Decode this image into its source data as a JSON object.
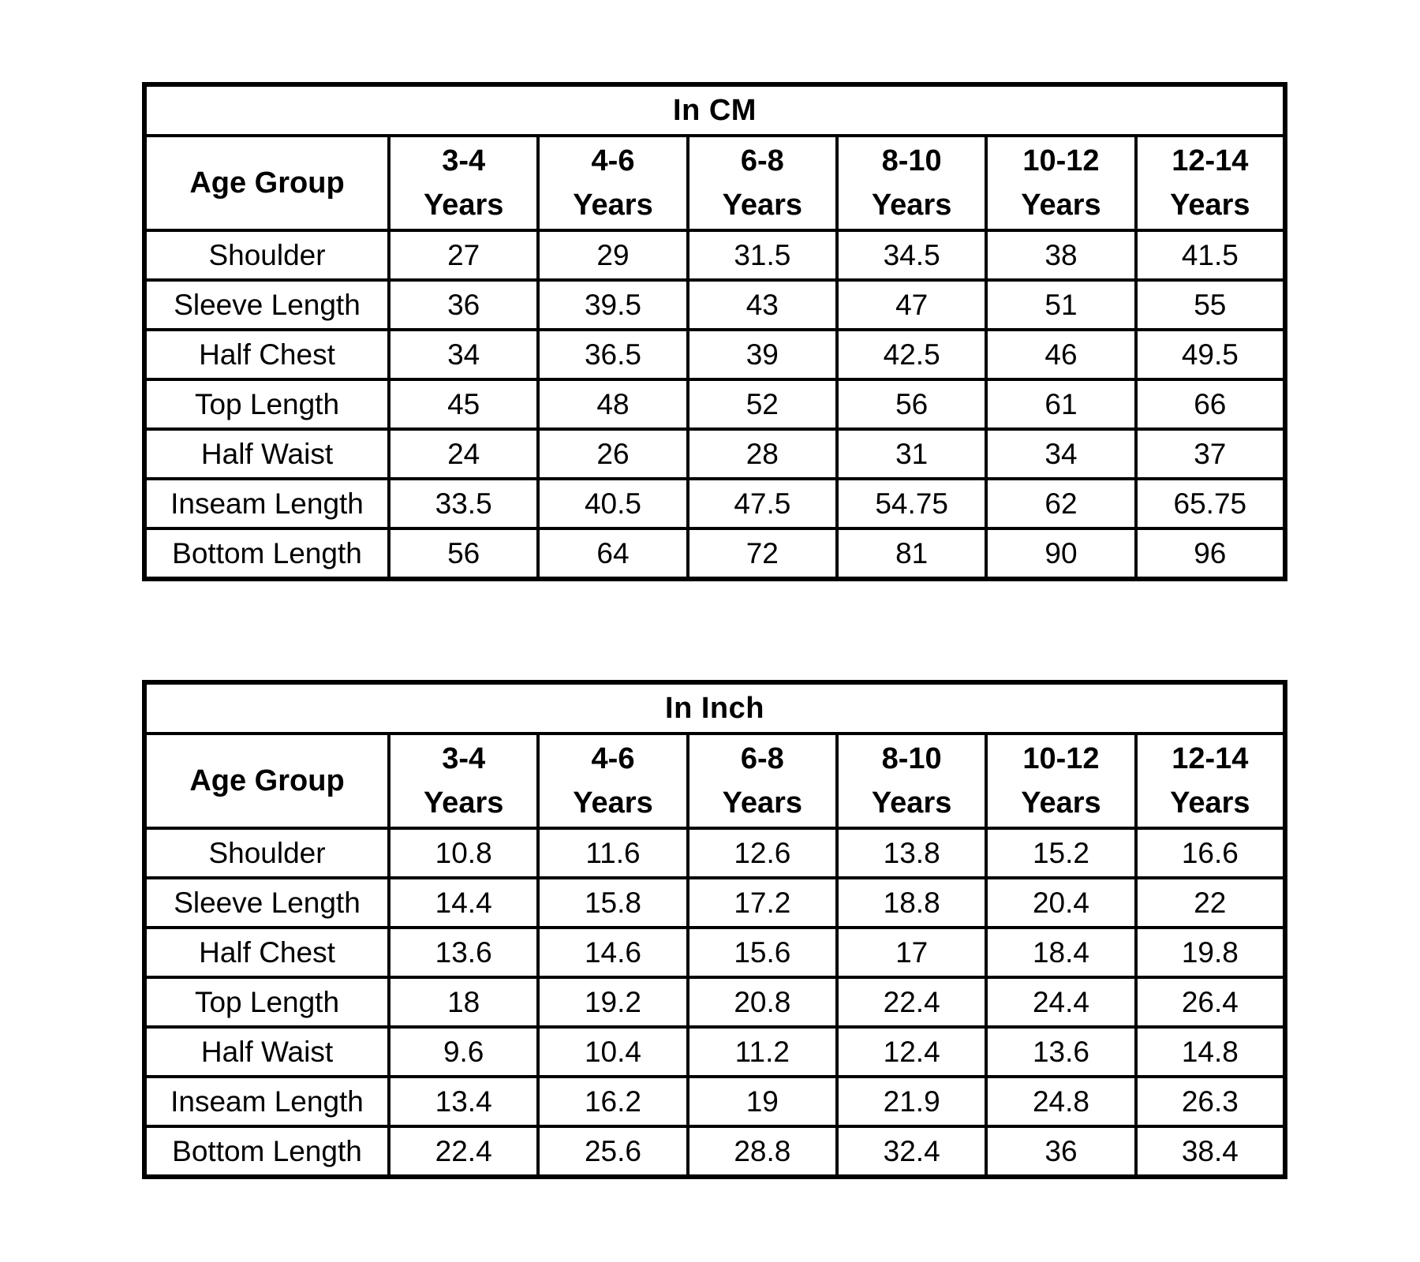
{
  "colors": {
    "background": "#ffffff",
    "text": "#000000",
    "border": "#000000"
  },
  "tables": [
    {
      "title": "In CM",
      "corner_label": "Age Group",
      "age_columns": [
        {
          "range": "3-4",
          "unit": "Years"
        },
        {
          "range": "4-6",
          "unit": "Years"
        },
        {
          "range": "6-8",
          "unit": "Years"
        },
        {
          "range": "8-10",
          "unit": "Years"
        },
        {
          "range": "10-12",
          "unit": "Years"
        },
        {
          "range": "12-14",
          "unit": "Years"
        }
      ],
      "rows": [
        {
          "label": "Shoulder",
          "values": [
            "27",
            "29",
            "31.5",
            "34.5",
            "38",
            "41.5"
          ]
        },
        {
          "label": "Sleeve Length",
          "values": [
            "36",
            "39.5",
            "43",
            "47",
            "51",
            "55"
          ]
        },
        {
          "label": "Half Chest",
          "values": [
            "34",
            "36.5",
            "39",
            "42.5",
            "46",
            "49.5"
          ]
        },
        {
          "label": "Top Length",
          "values": [
            "45",
            "48",
            "52",
            "56",
            "61",
            "66"
          ]
        },
        {
          "label": "Half Waist",
          "values": [
            "24",
            "26",
            "28",
            "31",
            "34",
            "37"
          ]
        },
        {
          "label": "Inseam Length",
          "values": [
            "33.5",
            "40.5",
            "47.5",
            "54.75",
            "62",
            "65.75"
          ]
        },
        {
          "label": "Bottom Length",
          "values": [
            "56",
            "64",
            "72",
            "81",
            "90",
            "96"
          ]
        }
      ]
    },
    {
      "title": "In Inch",
      "corner_label": "Age Group",
      "age_columns": [
        {
          "range": "3-4",
          "unit": "Years"
        },
        {
          "range": "4-6",
          "unit": "Years"
        },
        {
          "range": "6-8",
          "unit": "Years"
        },
        {
          "range": "8-10",
          "unit": "Years"
        },
        {
          "range": "10-12",
          "unit": "Years"
        },
        {
          "range": "12-14",
          "unit": "Years"
        }
      ],
      "rows": [
        {
          "label": "Shoulder",
          "values": [
            "10.8",
            "11.6",
            "12.6",
            "13.8",
            "15.2",
            "16.6"
          ]
        },
        {
          "label": "Sleeve Length",
          "values": [
            "14.4",
            "15.8",
            "17.2",
            "18.8",
            "20.4",
            "22"
          ]
        },
        {
          "label": "Half Chest",
          "values": [
            "13.6",
            "14.6",
            "15.6",
            "17",
            "18.4",
            "19.8"
          ]
        },
        {
          "label": "Top Length",
          "values": [
            "18",
            "19.2",
            "20.8",
            "22.4",
            "24.4",
            "26.4"
          ]
        },
        {
          "label": "Half Waist",
          "values": [
            "9.6",
            "10.4",
            "11.2",
            "12.4",
            "13.6",
            "14.8"
          ]
        },
        {
          "label": "Inseam Length",
          "values": [
            "13.4",
            "16.2",
            "19",
            "21.9",
            "24.8",
            "26.3"
          ]
        },
        {
          "label": "Bottom Length",
          "values": [
            "22.4",
            "25.6",
            "28.8",
            "32.4",
            "36",
            "38.4"
          ]
        }
      ]
    }
  ],
  "chart_data": [
    {
      "type": "table",
      "title": "In CM",
      "columns": [
        "Age Group",
        "3-4 Years",
        "4-6 Years",
        "6-8 Years",
        "8-10 Years",
        "10-12 Years",
        "12-14 Years"
      ],
      "rows": [
        [
          "Shoulder",
          27,
          29,
          31.5,
          34.5,
          38,
          41.5
        ],
        [
          "Sleeve Length",
          36,
          39.5,
          43,
          47,
          51,
          55
        ],
        [
          "Half Chest",
          34,
          36.5,
          39,
          42.5,
          46,
          49.5
        ],
        [
          "Top Length",
          45,
          48,
          52,
          56,
          61,
          66
        ],
        [
          "Half Waist",
          24,
          26,
          28,
          31,
          34,
          37
        ],
        [
          "Inseam Length",
          33.5,
          40.5,
          47.5,
          54.75,
          62,
          65.75
        ],
        [
          "Bottom Length",
          56,
          64,
          72,
          81,
          90,
          96
        ]
      ]
    },
    {
      "type": "table",
      "title": "In Inch",
      "columns": [
        "Age Group",
        "3-4 Years",
        "4-6 Years",
        "6-8 Years",
        "8-10 Years",
        "10-12 Years",
        "12-14 Years"
      ],
      "rows": [
        [
          "Shoulder",
          10.8,
          11.6,
          12.6,
          13.8,
          15.2,
          16.6
        ],
        [
          "Sleeve Length",
          14.4,
          15.8,
          17.2,
          18.8,
          20.4,
          22
        ],
        [
          "Half Chest",
          13.6,
          14.6,
          15.6,
          17,
          18.4,
          19.8
        ],
        [
          "Top Length",
          18,
          19.2,
          20.8,
          22.4,
          24.4,
          26.4
        ],
        [
          "Half Waist",
          9.6,
          10.4,
          11.2,
          12.4,
          13.6,
          14.8
        ],
        [
          "Inseam Length",
          13.4,
          16.2,
          19,
          21.9,
          24.8,
          26.3
        ],
        [
          "Bottom Length",
          22.4,
          25.6,
          28.8,
          32.4,
          36,
          38.4
        ]
      ]
    }
  ]
}
